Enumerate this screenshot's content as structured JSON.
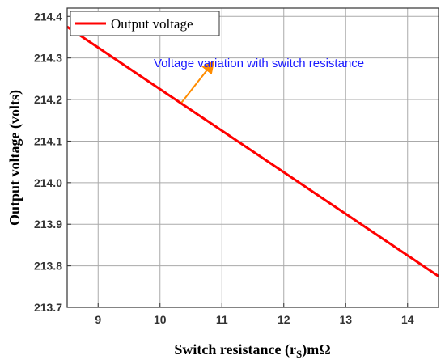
{
  "chart_data": {
    "type": "line",
    "xlabel": "Switch resistance (r",
    "xlabel_sub": "S",
    "xlabel_suffix": ")mΩ",
    "ylabel": "Output voltage (volts)",
    "xlim": [
      8.5,
      14.5
    ],
    "ylim": [
      213.7,
      214.42
    ],
    "x_ticks": [
      {
        "value": 9,
        "label": "9"
      },
      {
        "value": 10,
        "label": "10"
      },
      {
        "value": 11,
        "label": "11"
      },
      {
        "value": 12,
        "label": "12"
      },
      {
        "value": 13,
        "label": "13"
      },
      {
        "value": 14,
        "label": "14"
      }
    ],
    "y_ticks": [
      {
        "value": 213.7,
        "label": "213.7"
      },
      {
        "value": 213.8,
        "label": "213.8"
      },
      {
        "value": 213.9,
        "label": "213.9"
      },
      {
        "value": 214.0,
        "label": "214.0"
      },
      {
        "value": 214.1,
        "label": "214.1"
      },
      {
        "value": 214.2,
        "label": "214.2"
      },
      {
        "value": 214.3,
        "label": "214.3"
      },
      {
        "value": 214.4,
        "label": "214.4"
      }
    ],
    "grid": true,
    "legend_position": "top-left",
    "series": [
      {
        "name": "Output voltage",
        "color": "#ff0000",
        "x": [
          8.5,
          14.5
        ],
        "y": [
          214.375,
          213.775
        ]
      }
    ],
    "annotations": [
      {
        "text": "Voltage variation with switch resistance",
        "color": "#1a1aff",
        "arrow_color": "#ff8c00",
        "arrow_from": [
          10.35,
          214.193
        ],
        "arrow_to": [
          10.85,
          214.288
        ]
      }
    ]
  }
}
